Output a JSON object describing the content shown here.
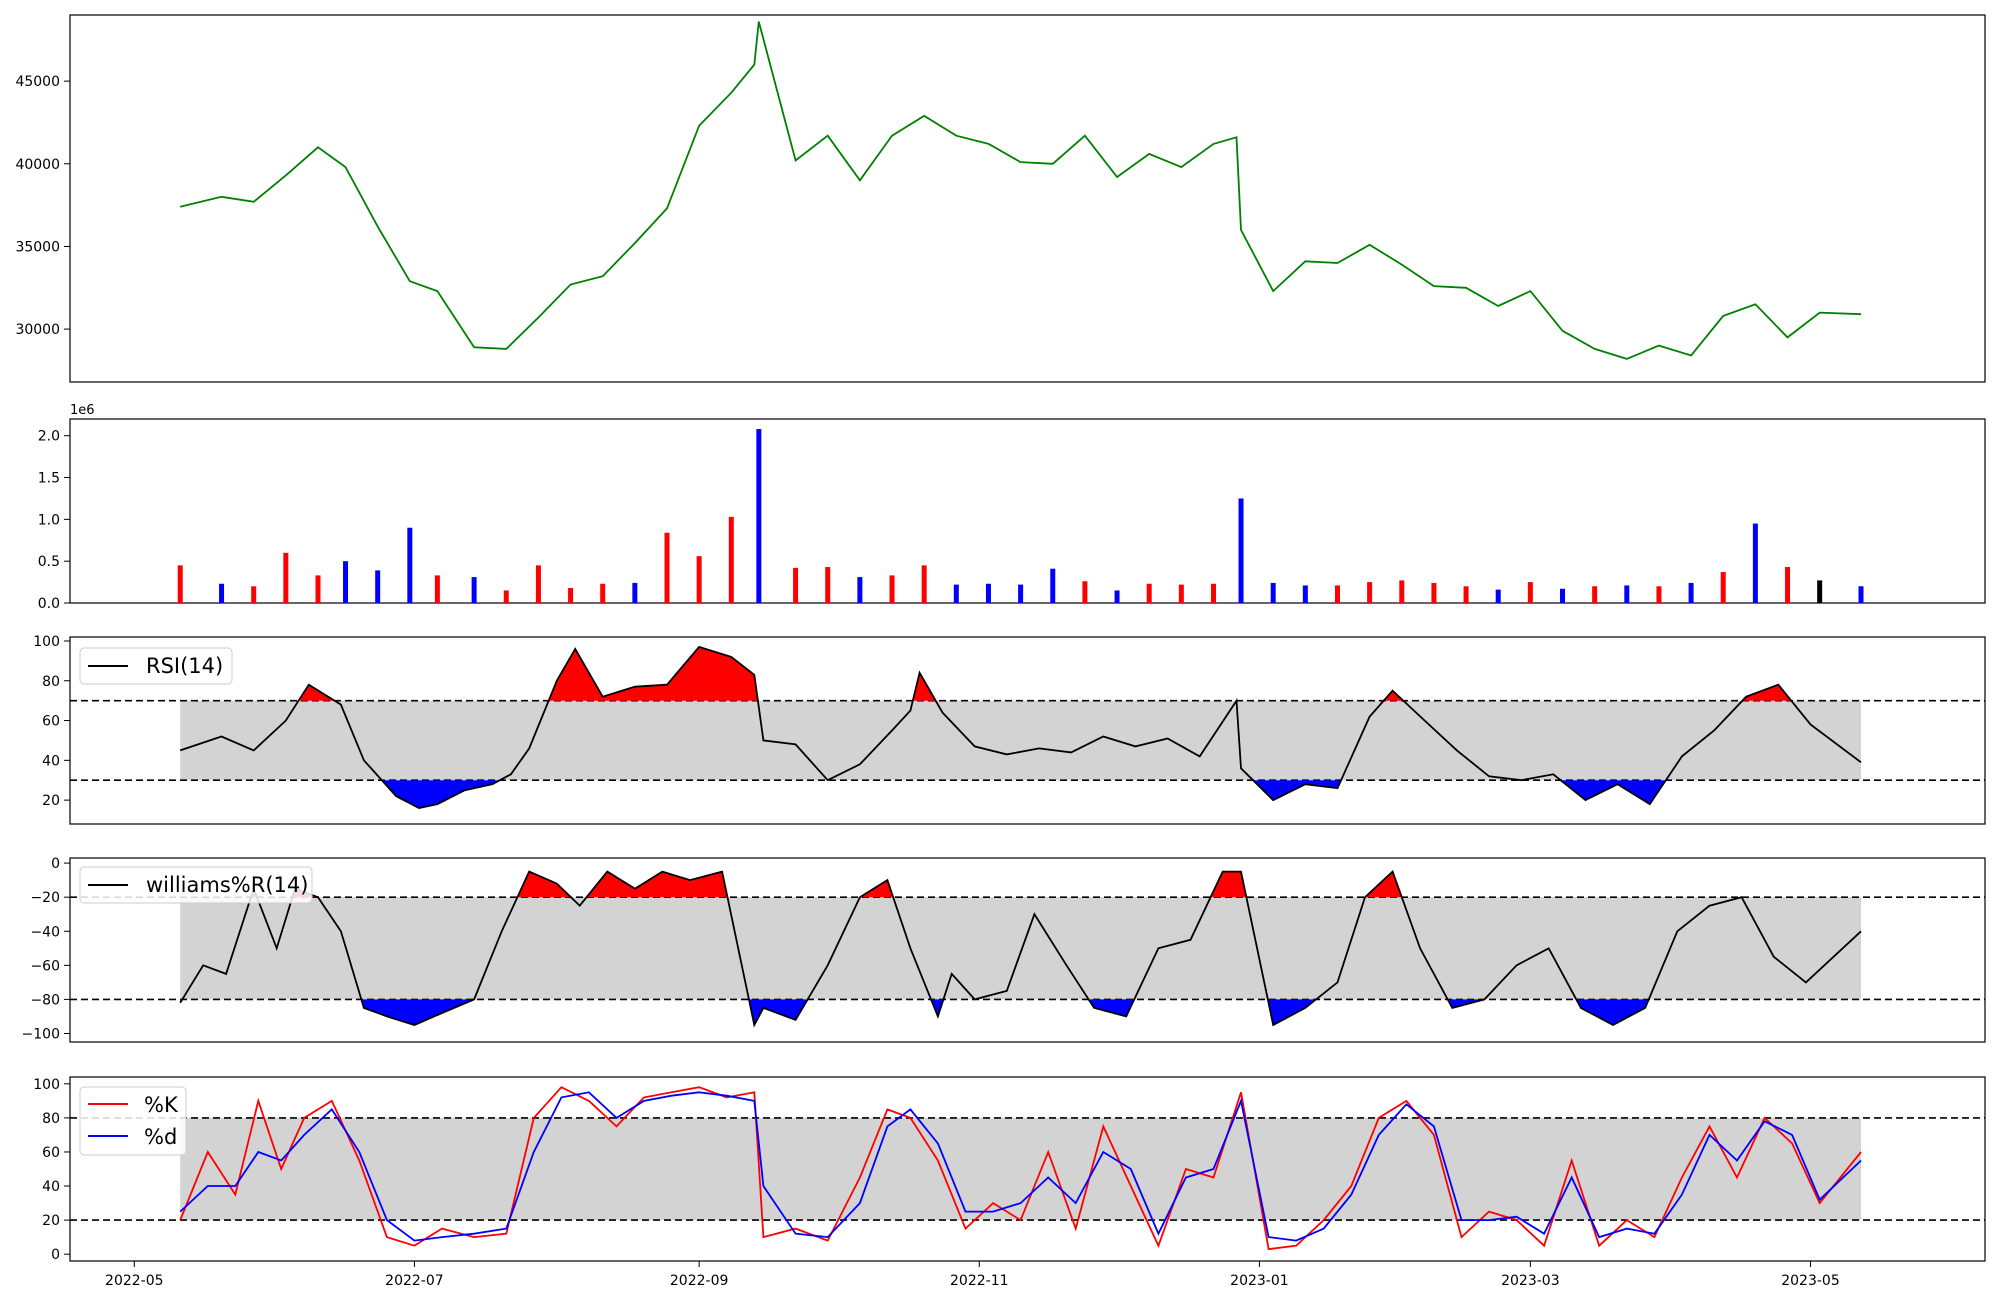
{
  "chart_data": [
    {
      "type": "line",
      "panel": "price",
      "x_range": [
        "2022-05-11",
        "2023-05-12"
      ],
      "ylim": [
        26800,
        49000
      ],
      "yticks": [
        30000,
        35000,
        40000,
        45000
      ],
      "ytick_labels": [
        "30000",
        "35000",
        "40000",
        "45000"
      ],
      "grid": false,
      "series": [
        {
          "color": "#008000",
          "x": [
            "2022-05-11",
            "2022-05-20",
            "2022-05-27",
            "2022-06-03",
            "2022-06-10",
            "2022-06-16",
            "2022-06-23",
            "2022-06-30",
            "2022-07-06",
            "2022-07-14",
            "2022-07-21",
            "2022-07-28",
            "2022-08-04",
            "2022-08-11",
            "2022-08-18",
            "2022-08-25",
            "2022-09-01",
            "2022-09-08",
            "2022-09-13",
            "2022-09-14",
            "2022-09-22",
            "2022-09-29",
            "2022-10-06",
            "2022-10-13",
            "2022-10-20",
            "2022-10-27",
            "2022-11-03",
            "2022-11-10",
            "2022-11-17",
            "2022-11-24",
            "2022-12-01",
            "2022-12-08",
            "2022-12-15",
            "2022-12-22",
            "2022-12-27",
            "2022-12-28",
            "2023-01-04",
            "2023-01-11",
            "2023-01-18",
            "2023-01-25",
            "2023-02-01",
            "2023-02-08",
            "2023-02-15",
            "2023-02-22",
            "2023-03-01",
            "2023-03-08",
            "2023-03-15",
            "2023-03-22",
            "2023-03-29",
            "2023-04-05",
            "2023-04-12",
            "2023-04-19",
            "2023-04-26",
            "2023-05-03",
            "2023-05-12"
          ],
          "y": [
            37400,
            38000,
            37700,
            39300,
            41000,
            39800,
            36200,
            32900,
            32300,
            28900,
            28800,
            30700,
            32700,
            33200,
            35200,
            37300,
            42300,
            44300,
            46000,
            48600,
            40200,
            41700,
            39000,
            41700,
            42900,
            41700,
            41200,
            40100,
            40000,
            41700,
            39200,
            40600,
            39800,
            41200,
            41600,
            36000,
            32300,
            34100,
            34000,
            35100,
            33900,
            32600,
            32500,
            31400,
            32300,
            29900,
            28800,
            28200,
            29000,
            28400,
            30800,
            31500,
            29500,
            31000,
            30900
          ]
        }
      ]
    },
    {
      "type": "bar",
      "panel": "volume",
      "scale_label": "1e6",
      "ylim": [
        0,
        2200000
      ],
      "yticks": [
        0,
        500000,
        1000000,
        1500000,
        2000000
      ],
      "ytick_labels": [
        "0.0",
        "0.5",
        "1.0",
        "1.5",
        "2.0"
      ],
      "grid": false,
      "colors": {
        "up": "#ff0000",
        "down": "#0000ff",
        "flat": "#000000"
      },
      "x": [
        "2022-05-11",
        "2022-05-20",
        "2022-05-27",
        "2022-06-03",
        "2022-06-10",
        "2022-06-16",
        "2022-06-23",
        "2022-06-30",
        "2022-07-06",
        "2022-07-14",
        "2022-07-21",
        "2022-07-28",
        "2022-08-04",
        "2022-08-11",
        "2022-08-18",
        "2022-08-25",
        "2022-09-01",
        "2022-09-08",
        "2022-09-14",
        "2022-09-22",
        "2022-09-29",
        "2022-10-06",
        "2022-10-13",
        "2022-10-20",
        "2022-10-27",
        "2022-11-03",
        "2022-11-10",
        "2022-11-17",
        "2022-11-24",
        "2022-12-01",
        "2022-12-08",
        "2022-12-15",
        "2022-12-22",
        "2022-12-28",
        "2023-01-04",
        "2023-01-11",
        "2023-01-18",
        "2023-01-25",
        "2023-02-01",
        "2023-02-08",
        "2023-02-15",
        "2023-02-22",
        "2023-03-01",
        "2023-03-08",
        "2023-03-15",
        "2023-03-22",
        "2023-03-29",
        "2023-04-05",
        "2023-04-12",
        "2023-04-19",
        "2023-04-26",
        "2023-05-03",
        "2023-05-12"
      ],
      "values": [
        450000,
        230000,
        200000,
        600000,
        330000,
        500000,
        390000,
        900000,
        330000,
        310000,
        150000,
        450000,
        180000,
        230000,
        240000,
        840000,
        560000,
        1030000,
        2080000,
        420000,
        430000,
        310000,
        330000,
        450000,
        220000,
        230000,
        220000,
        410000,
        260000,
        150000,
        230000,
        220000,
        230000,
        1250000,
        240000,
        210000,
        210000,
        250000,
        270000,
        240000,
        200000,
        160000,
        250000,
        170000,
        200000,
        210000,
        200000,
        240000,
        370000,
        950000,
        430000,
        270000,
        200000
      ],
      "direction": [
        "up",
        "down",
        "up",
        "up",
        "up",
        "down",
        "down",
        "down",
        "up",
        "down",
        "up",
        "up",
        "up",
        "up",
        "down",
        "up",
        "up",
        "up",
        "down",
        "up",
        "up",
        "down",
        "up",
        "up",
        "down",
        "down",
        "down",
        "down",
        "up",
        "down",
        "up",
        "up",
        "up",
        "down",
        "down",
        "down",
        "up",
        "up",
        "up",
        "up",
        "up",
        "down",
        "up",
        "down",
        "up",
        "down",
        "up",
        "down",
        "up",
        "down",
        "up",
        "flat",
        "down"
      ]
    },
    {
      "type": "line",
      "panel": "rsi",
      "ylim": [
        8,
        102
      ],
      "yticks": [
        20,
        40,
        60,
        80,
        100
      ],
      "ytick_labels": [
        "20",
        "40",
        "60",
        "80",
        "100"
      ],
      "band": [
        30,
        70
      ],
      "legend": "top-left",
      "series": [
        {
          "name": "RSI(14)",
          "color": "#000000",
          "x": [
            "2022-05-11",
            "2022-05-20",
            "2022-05-27",
            "2022-06-03",
            "2022-06-08",
            "2022-06-15",
            "2022-06-20",
            "2022-06-27",
            "2022-07-02",
            "2022-07-06",
            "2022-07-12",
            "2022-07-18",
            "2022-07-22",
            "2022-07-26",
            "2022-08-01",
            "2022-08-05",
            "2022-08-11",
            "2022-08-18",
            "2022-08-25",
            "2022-09-01",
            "2022-09-08",
            "2022-09-13",
            "2022-09-15",
            "2022-09-22",
            "2022-09-29",
            "2022-10-06",
            "2022-10-13",
            "2022-10-17",
            "2022-10-19",
            "2022-10-24",
            "2022-10-31",
            "2022-11-07",
            "2022-11-14",
            "2022-11-21",
            "2022-11-28",
            "2022-12-05",
            "2022-12-12",
            "2022-12-19",
            "2022-12-27",
            "2022-12-28",
            "2023-01-04",
            "2023-01-11",
            "2023-01-18",
            "2023-01-25",
            "2023-01-30",
            "2023-02-06",
            "2023-02-13",
            "2023-02-20",
            "2023-02-27",
            "2023-03-06",
            "2023-03-13",
            "2023-03-20",
            "2023-03-27",
            "2023-04-03",
            "2023-04-10",
            "2023-04-17",
            "2023-04-24",
            "2023-05-01",
            "2023-05-12"
          ],
          "y": [
            45,
            52,
            45,
            60,
            78,
            68,
            40,
            22,
            16,
            18,
            25,
            28,
            33,
            46,
            80,
            96,
            72,
            77,
            78,
            97,
            92,
            83,
            50,
            48,
            30,
            38,
            55,
            65,
            84,
            64,
            47,
            43,
            46,
            44,
            52,
            47,
            51,
            42,
            70,
            36,
            20,
            28,
            26,
            62,
            75,
            60,
            45,
            32,
            30,
            33,
            20,
            28,
            18,
            42,
            55,
            72,
            78,
            58,
            39
          ]
        }
      ]
    },
    {
      "type": "line",
      "panel": "williams",
      "ylim": [
        -105,
        3
      ],
      "yticks": [
        -100,
        -80,
        -60,
        -40,
        -20,
        0
      ],
      "ytick_labels": [
        "−100",
        "−80",
        "−60",
        "−40",
        "−20",
        "0"
      ],
      "band": [
        -80,
        -20
      ],
      "legend": "top-left",
      "series": [
        {
          "name": "williams%R(14)",
          "color": "#000000",
          "x": [
            "2022-05-11",
            "2022-05-16",
            "2022-05-21",
            "2022-05-27",
            "2022-06-01",
            "2022-06-05",
            "2022-06-10",
            "2022-06-15",
            "2022-06-20",
            "2022-06-25",
            "2022-07-01",
            "2022-07-07",
            "2022-07-14",
            "2022-07-20",
            "2022-07-26",
            "2022-08-01",
            "2022-08-06",
            "2022-08-12",
            "2022-08-18",
            "2022-08-24",
            "2022-08-30",
            "2022-09-06",
            "2022-09-13",
            "2022-09-15",
            "2022-09-22",
            "2022-09-29",
            "2022-10-06",
            "2022-10-12",
            "2022-10-17",
            "2022-10-23",
            "2022-10-26",
            "2022-10-31",
            "2022-11-07",
            "2022-11-13",
            "2022-11-20",
            "2022-11-26",
            "2022-12-03",
            "2022-12-10",
            "2022-12-17",
            "2022-12-24",
            "2022-12-28",
            "2023-01-04",
            "2023-01-11",
            "2023-01-18",
            "2023-01-24",
            "2023-01-30",
            "2023-02-05",
            "2023-02-12",
            "2023-02-19",
            "2023-02-26",
            "2023-03-05",
            "2023-03-12",
            "2023-03-19",
            "2023-03-26",
            "2023-04-02",
            "2023-04-09",
            "2023-04-16",
            "2023-04-23",
            "2023-04-30",
            "2023-05-12"
          ],
          "y": [
            -82,
            -60,
            -65,
            -15,
            -50,
            -15,
            -20,
            -40,
            -85,
            -90,
            -95,
            -88,
            -80,
            -40,
            -5,
            -12,
            -25,
            -5,
            -15,
            -5,
            -10,
            -5,
            -95,
            -85,
            -92,
            -60,
            -20,
            -10,
            -50,
            -90,
            -65,
            -80,
            -75,
            -30,
            -60,
            -85,
            -90,
            -50,
            -45,
            -5,
            -5,
            -95,
            -85,
            -70,
            -20,
            -5,
            -50,
            -85,
            -80,
            -60,
            -50,
            -85,
            -95,
            -85,
            -40,
            -25,
            -20,
            -55,
            -70,
            -40
          ]
        }
      ]
    },
    {
      "type": "line",
      "panel": "stochastic",
      "ylim": [
        -4,
        104
      ],
      "yticks": [
        0,
        20,
        40,
        60,
        80,
        100
      ],
      "ytick_labels": [
        "0",
        "20",
        "40",
        "60",
        "80",
        "100"
      ],
      "band": [
        20,
        80
      ],
      "legend": "top-left",
      "xticks": [
        "2022-05-01",
        "2022-07-01",
        "2022-09-01",
        "2022-11-01",
        "2023-01-01",
        "2023-03-01",
        "2023-05-01"
      ],
      "xtick_labels": [
        "2022-05",
        "2022-07",
        "2022-09",
        "2022-11",
        "2023-01",
        "2023-03",
        "2023-05"
      ],
      "series": [
        {
          "name": "%K",
          "color": "#ff0000",
          "x": [
            "2022-05-11",
            "2022-05-17",
            "2022-05-23",
            "2022-05-28",
            "2022-06-02",
            "2022-06-07",
            "2022-06-13",
            "2022-06-19",
            "2022-06-25",
            "2022-07-01",
            "2022-07-07",
            "2022-07-14",
            "2022-07-21",
            "2022-07-27",
            "2022-08-02",
            "2022-08-08",
            "2022-08-14",
            "2022-08-20",
            "2022-08-26",
            "2022-09-01",
            "2022-09-07",
            "2022-09-13",
            "2022-09-15",
            "2022-09-22",
            "2022-09-29",
            "2022-10-06",
            "2022-10-12",
            "2022-10-17",
            "2022-10-23",
            "2022-10-29",
            "2022-11-04",
            "2022-11-10",
            "2022-11-16",
            "2022-11-22",
            "2022-11-28",
            "2022-12-04",
            "2022-12-10",
            "2022-12-16",
            "2022-12-22",
            "2022-12-28",
            "2023-01-03",
            "2023-01-09",
            "2023-01-15",
            "2023-01-21",
            "2023-01-27",
            "2023-02-02",
            "2023-02-08",
            "2023-02-14",
            "2023-02-20",
            "2023-02-26",
            "2023-03-04",
            "2023-03-10",
            "2023-03-16",
            "2023-03-22",
            "2023-03-28",
            "2023-04-03",
            "2023-04-09",
            "2023-04-15",
            "2023-04-21",
            "2023-04-27",
            "2023-05-03",
            "2023-05-12"
          ],
          "y": [
            20,
            60,
            35,
            90,
            50,
            80,
            90,
            55,
            10,
            5,
            15,
            10,
            12,
            80,
            98,
            90,
            75,
            92,
            95,
            98,
            92,
            95,
            10,
            15,
            8,
            45,
            85,
            80,
            55,
            15,
            30,
            20,
            60,
            15,
            75,
            40,
            5,
            50,
            45,
            95,
            3,
            5,
            20,
            40,
            80,
            90,
            70,
            10,
            25,
            20,
            5,
            55,
            5,
            20,
            10,
            45,
            75,
            45,
            80,
            65,
            30,
            60
          ]
        },
        {
          "name": "%d",
          "color": "#0000ff",
          "x": [
            "2022-05-11",
            "2022-05-17",
            "2022-05-23",
            "2022-05-28",
            "2022-06-02",
            "2022-06-07",
            "2022-06-13",
            "2022-06-19",
            "2022-06-25",
            "2022-07-01",
            "2022-07-07",
            "2022-07-14",
            "2022-07-21",
            "2022-07-27",
            "2022-08-02",
            "2022-08-08",
            "2022-08-14",
            "2022-08-20",
            "2022-08-26",
            "2022-09-01",
            "2022-09-07",
            "2022-09-13",
            "2022-09-15",
            "2022-09-22",
            "2022-09-29",
            "2022-10-06",
            "2022-10-12",
            "2022-10-17",
            "2022-10-23",
            "2022-10-29",
            "2022-11-04",
            "2022-11-10",
            "2022-11-16",
            "2022-11-22",
            "2022-11-28",
            "2022-12-04",
            "2022-12-10",
            "2022-12-16",
            "2022-12-22",
            "2022-12-28",
            "2023-01-03",
            "2023-01-09",
            "2023-01-15",
            "2023-01-21",
            "2023-01-27",
            "2023-02-02",
            "2023-02-08",
            "2023-02-14",
            "2023-02-20",
            "2023-02-26",
            "2023-03-04",
            "2023-03-10",
            "2023-03-16",
            "2023-03-22",
            "2023-03-28",
            "2023-04-03",
            "2023-04-09",
            "2023-04-15",
            "2023-04-21",
            "2023-04-27",
            "2023-05-03",
            "2023-05-12"
          ],
          "y": [
            25,
            40,
            40,
            60,
            55,
            70,
            85,
            60,
            20,
            8,
            10,
            12,
            15,
            60,
            92,
            95,
            80,
            90,
            93,
            95,
            93,
            90,
            40,
            12,
            10,
            30,
            75,
            85,
            65,
            25,
            25,
            30,
            45,
            30,
            60,
            50,
            12,
            45,
            50,
            90,
            10,
            8,
            15,
            35,
            70,
            88,
            75,
            20,
            20,
            22,
            12,
            45,
            10,
            15,
            12,
            35,
            70,
            55,
            78,
            70,
            32,
            55
          ]
        }
      ]
    }
  ]
}
